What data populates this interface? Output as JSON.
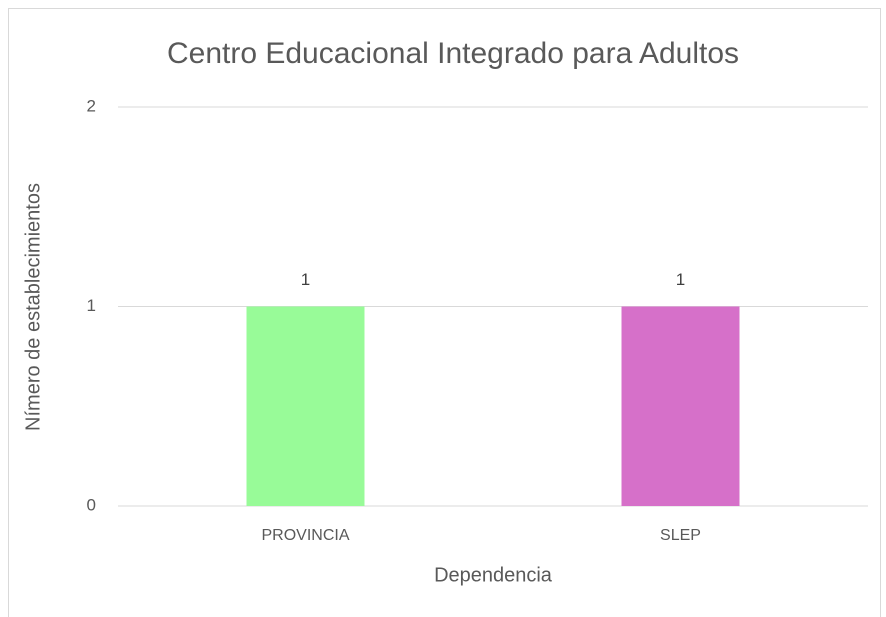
{
  "chart_data": {
    "type": "bar",
    "title": "Centro Educacional Integrado para Adultos",
    "x_label": "Dependencia",
    "y_label": "Nímero de establecimientos",
    "categories": [
      "PROVINCIA",
      "SLEP"
    ],
    "values": [
      1,
      1
    ],
    "colors": [
      "#98fb98",
      "#d670c9"
    ],
    "ylim": [
      0,
      2
    ],
    "yticks": [
      0,
      1,
      2
    ],
    "grid": true,
    "data_labels": true
  }
}
